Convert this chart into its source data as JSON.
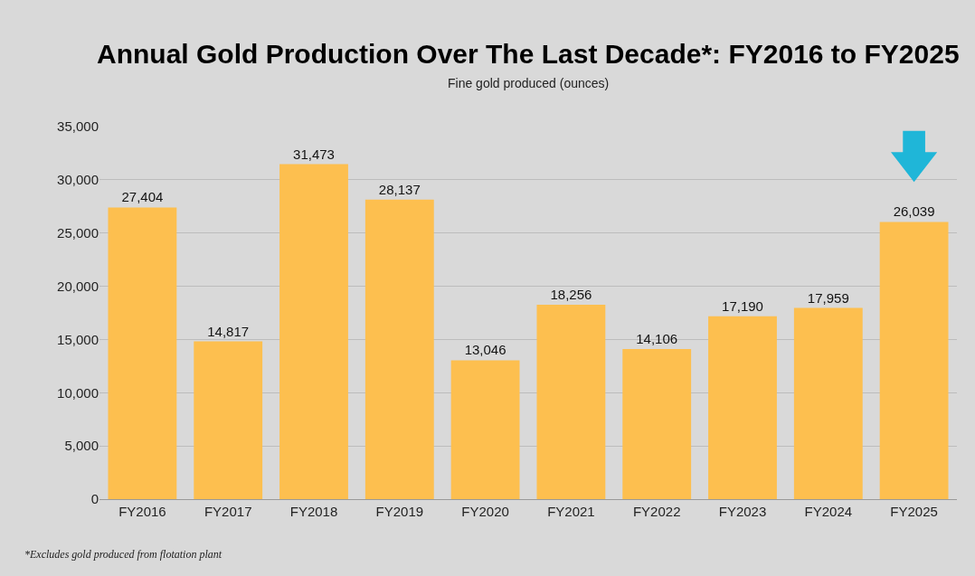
{
  "chart_data": {
    "type": "bar",
    "title": "Annual Gold Production Over The Last Decade*: FY2016 to FY2025",
    "subtitle": "Fine gold produced (ounces)",
    "categories": [
      "FY2016",
      "FY2017",
      "FY2018",
      "FY2019",
      "FY2020",
      "FY2021",
      "FY2022",
      "FY2023",
      "FY2024",
      "FY2025"
    ],
    "values": [
      27404,
      14817,
      31473,
      28137,
      13046,
      18256,
      14106,
      17190,
      17959,
      26039
    ],
    "color": "#fdbf4f",
    "ylim": [
      0,
      35000
    ],
    "yticks": [
      {
        "value": 0,
        "label": "0"
      },
      {
        "value": 5000,
        "label": "5,000"
      },
      {
        "value": 10000,
        "label": "10,000"
      },
      {
        "value": 15000,
        "label": "15,000"
      },
      {
        "value": 20000,
        "label": "20,000"
      },
      {
        "value": 25000,
        "label": "25,000"
      },
      {
        "value": 30000,
        "label": "30,000"
      },
      {
        "value": 35000,
        "label": "35,000"
      }
    ],
    "value_labels": [
      "27,404",
      "14,817",
      "31,473",
      "28,137",
      "13,046",
      "18,256",
      "14,106",
      "17,190",
      "17,959",
      "26,039"
    ],
    "grid": "y",
    "legend": false,
    "annotations": [
      "*Excludes gold produced from flotation plant"
    ]
  }
}
